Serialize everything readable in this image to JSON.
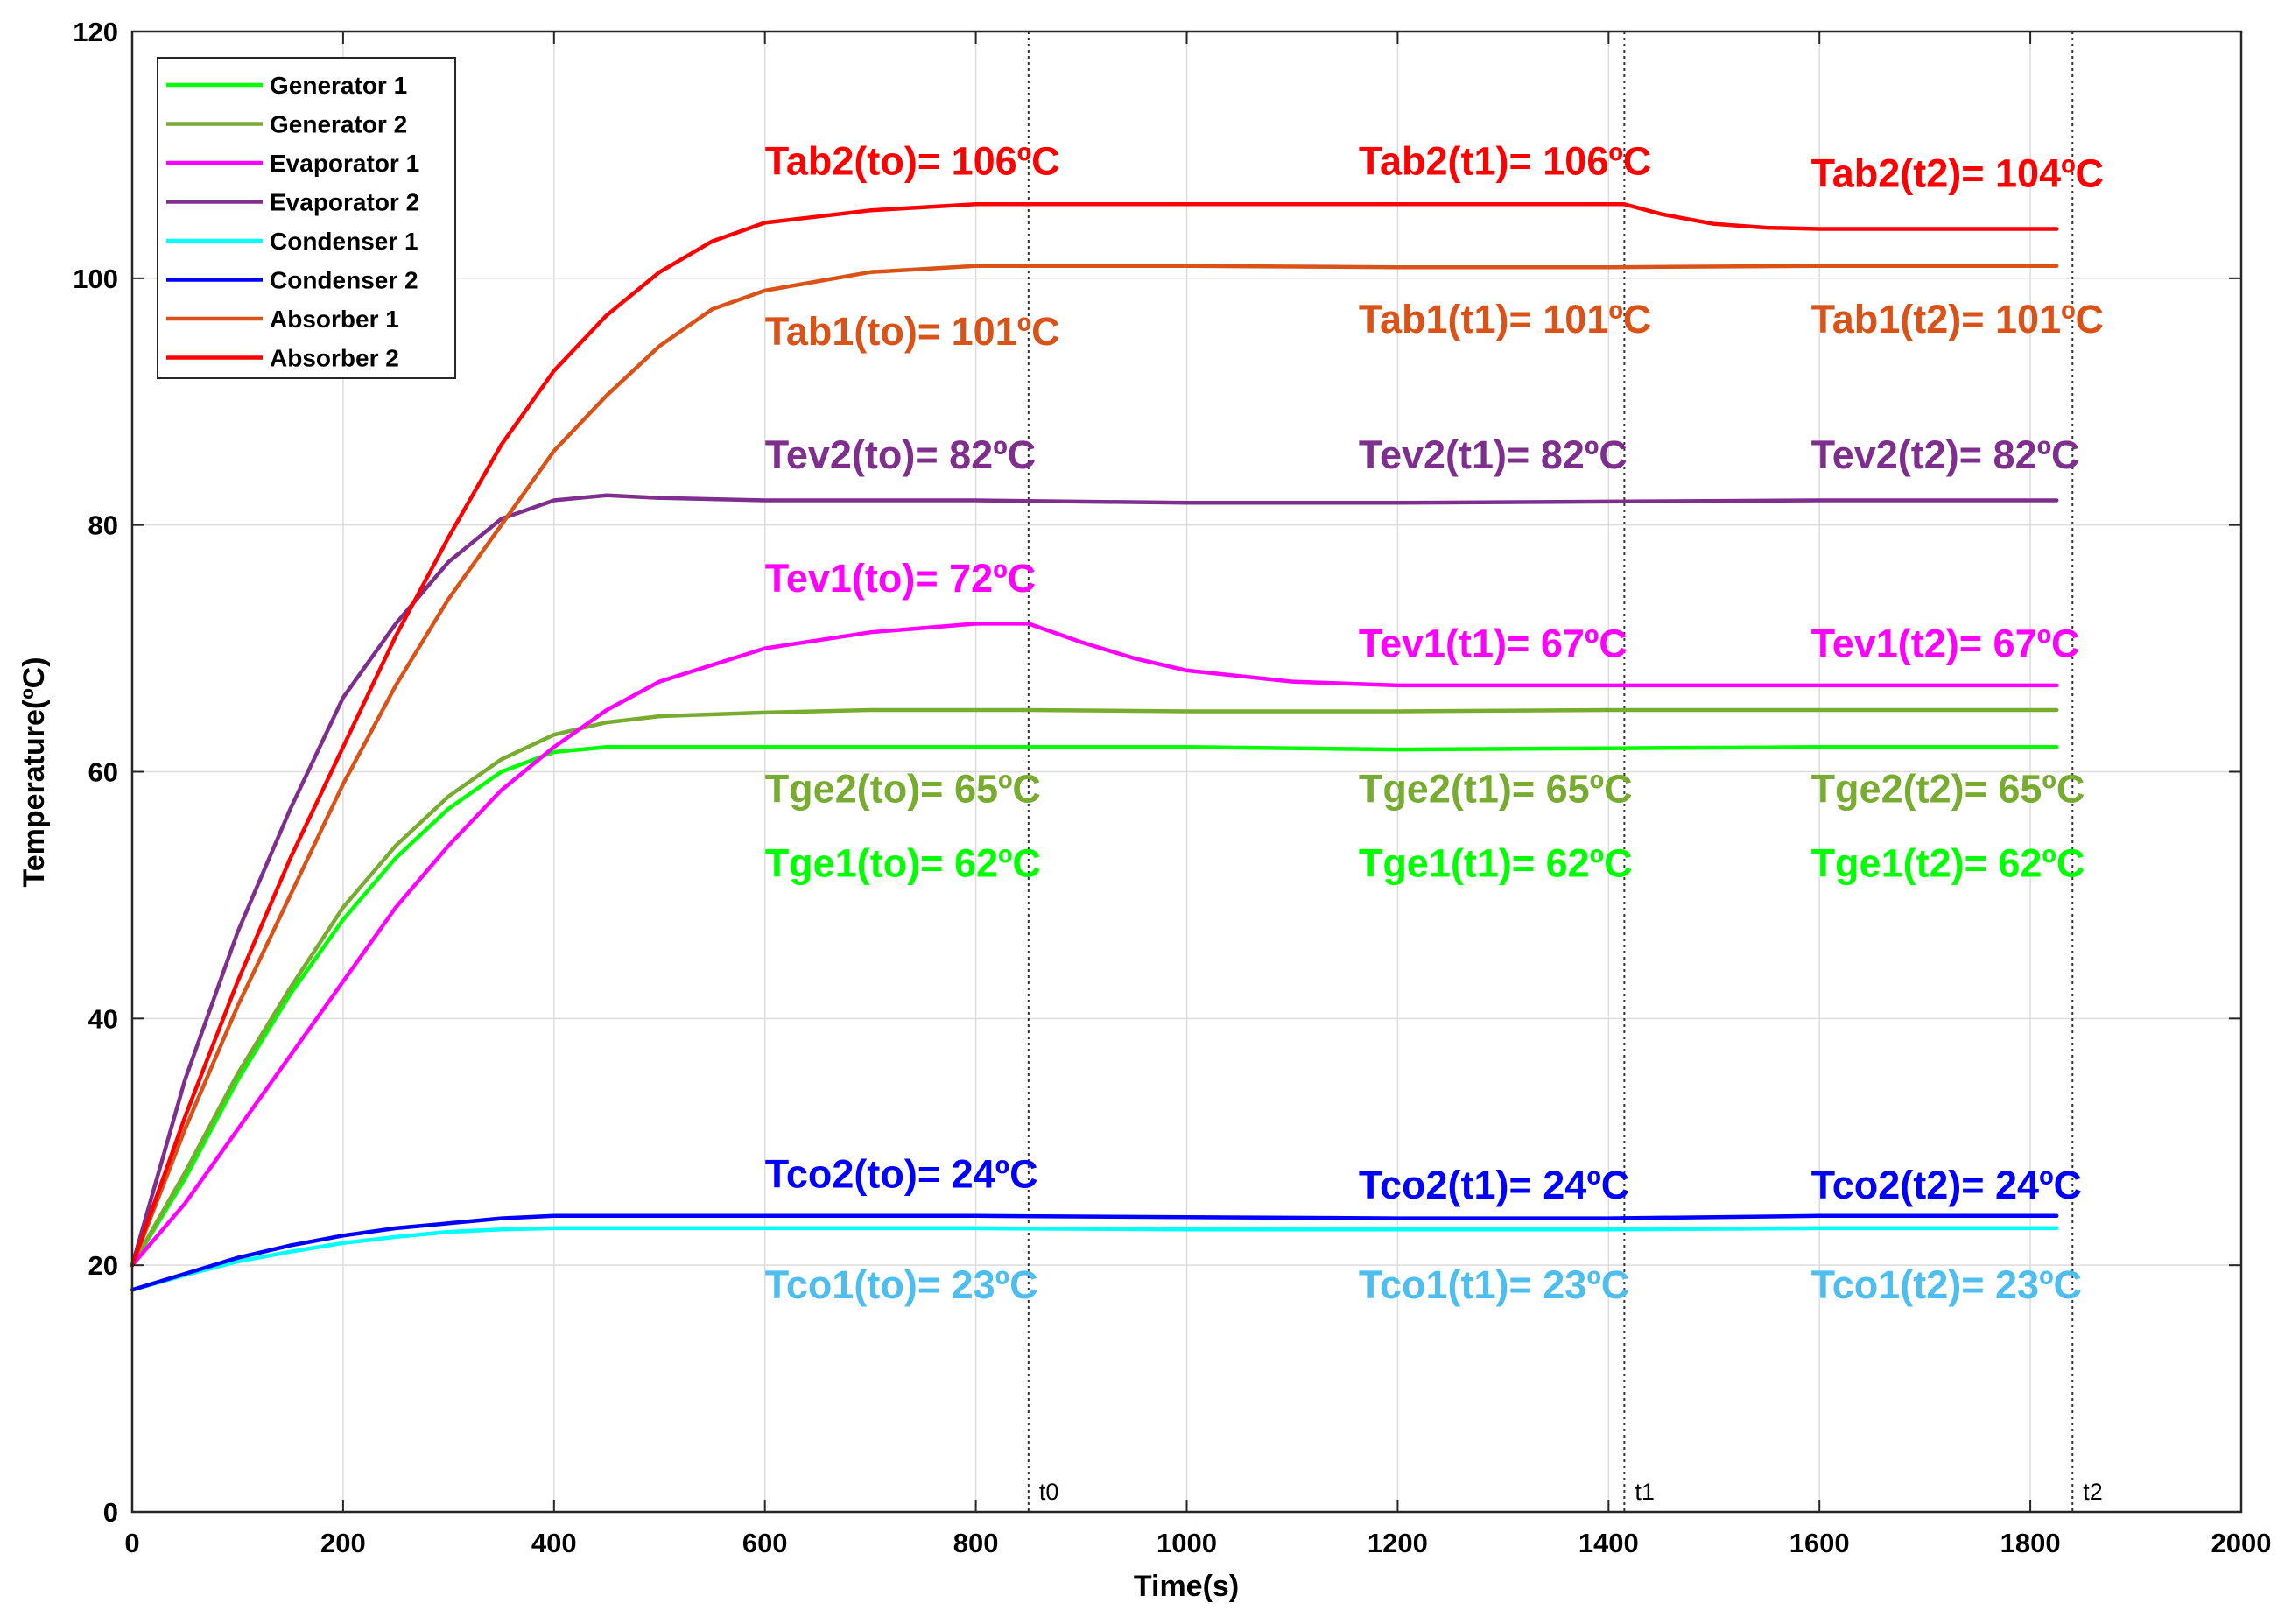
{
  "chart_data": {
    "type": "line",
    "title": "",
    "xlabel": "Time(s)",
    "ylabel": "Temperature(ºC)",
    "xlim": [
      0,
      2000
    ],
    "ylim": [
      0,
      120
    ],
    "xticks": [
      0,
      200,
      400,
      600,
      800,
      1000,
      1200,
      1400,
      1600,
      1800,
      2000
    ],
    "yticks": [
      0,
      20,
      40,
      60,
      80,
      100,
      120
    ],
    "grid": true,
    "legend_position": "top-left",
    "series": [
      {
        "name": "Generator 1",
        "color": "#00ff00",
        "points": [
          [
            0,
            20
          ],
          [
            50,
            27
          ],
          [
            100,
            35
          ],
          [
            150,
            42
          ],
          [
            200,
            48
          ],
          [
            250,
            53
          ],
          [
            300,
            57
          ],
          [
            350,
            60
          ],
          [
            400,
            61.6
          ],
          [
            450,
            62
          ],
          [
            500,
            62
          ],
          [
            700,
            62
          ],
          [
            850,
            62
          ],
          [
            1000,
            62
          ],
          [
            1200,
            61.8
          ],
          [
            1400,
            61.9
          ],
          [
            1600,
            62
          ],
          [
            1825,
            62
          ]
        ]
      },
      {
        "name": "Generator 2",
        "color": "#77ac30",
        "points": [
          [
            0,
            20
          ],
          [
            50,
            27.5
          ],
          [
            100,
            35.5
          ],
          [
            150,
            42.5
          ],
          [
            200,
            49
          ],
          [
            250,
            54
          ],
          [
            300,
            58
          ],
          [
            350,
            61
          ],
          [
            400,
            63
          ],
          [
            450,
            64
          ],
          [
            500,
            64.5
          ],
          [
            600,
            64.8
          ],
          [
            700,
            65
          ],
          [
            850,
            65
          ],
          [
            1000,
            64.9
          ],
          [
            1200,
            64.9
          ],
          [
            1400,
            65
          ],
          [
            1600,
            65
          ],
          [
            1825,
            65
          ]
        ]
      },
      {
        "name": "Evaporator 1",
        "color": "#ff00ff",
        "points": [
          [
            0,
            20
          ],
          [
            50,
            25
          ],
          [
            100,
            31
          ],
          [
            150,
            37
          ],
          [
            200,
            43
          ],
          [
            250,
            49
          ],
          [
            300,
            54
          ],
          [
            350,
            58.5
          ],
          [
            400,
            62
          ],
          [
            450,
            65
          ],
          [
            500,
            67.3
          ],
          [
            600,
            70
          ],
          [
            700,
            71.3
          ],
          [
            800,
            72
          ],
          [
            850,
            72
          ],
          [
            900,
            70.5
          ],
          [
            950,
            69.2
          ],
          [
            1000,
            68.2
          ],
          [
            1100,
            67.3
          ],
          [
            1200,
            67
          ],
          [
            1400,
            67
          ],
          [
            1600,
            67
          ],
          [
            1825,
            67
          ]
        ]
      },
      {
        "name": "Evaporator 2",
        "color": "#7e2f8e",
        "points": [
          [
            0,
            20
          ],
          [
            50,
            35
          ],
          [
            100,
            47
          ],
          [
            150,
            57
          ],
          [
            200,
            66
          ],
          [
            250,
            72
          ],
          [
            300,
            77
          ],
          [
            350,
            80.5
          ],
          [
            400,
            82
          ],
          [
            450,
            82.4
          ],
          [
            500,
            82.2
          ],
          [
            600,
            82
          ],
          [
            800,
            82
          ],
          [
            1000,
            81.8
          ],
          [
            1200,
            81.8
          ],
          [
            1400,
            81.9
          ],
          [
            1600,
            82
          ],
          [
            1825,
            82
          ]
        ]
      },
      {
        "name": "Condenser 1",
        "color": "#00ffff",
        "points": [
          [
            0,
            18
          ],
          [
            50,
            19.2
          ],
          [
            100,
            20.3
          ],
          [
            150,
            21.1
          ],
          [
            200,
            21.8
          ],
          [
            250,
            22.3
          ],
          [
            300,
            22.7
          ],
          [
            350,
            22.9
          ],
          [
            400,
            23
          ],
          [
            600,
            23
          ],
          [
            800,
            23
          ],
          [
            1000,
            22.9
          ],
          [
            1200,
            22.9
          ],
          [
            1400,
            22.9
          ],
          [
            1600,
            23
          ],
          [
            1825,
            23
          ]
        ]
      },
      {
        "name": "Condenser 2",
        "color": "#0000ff",
        "points": [
          [
            0,
            18
          ],
          [
            50,
            19.3
          ],
          [
            100,
            20.6
          ],
          [
            150,
            21.6
          ],
          [
            200,
            22.4
          ],
          [
            250,
            23
          ],
          [
            300,
            23.4
          ],
          [
            350,
            23.8
          ],
          [
            400,
            24
          ],
          [
            600,
            24
          ],
          [
            800,
            24
          ],
          [
            1000,
            23.9
          ],
          [
            1200,
            23.8
          ],
          [
            1400,
            23.8
          ],
          [
            1600,
            24
          ],
          [
            1825,
            24
          ]
        ]
      },
      {
        "name": "Absorber 1",
        "color": "#d95319",
        "points": [
          [
            0,
            20
          ],
          [
            50,
            31
          ],
          [
            100,
            41
          ],
          [
            150,
            50
          ],
          [
            200,
            59
          ],
          [
            250,
            67
          ],
          [
            300,
            74
          ],
          [
            350,
            80
          ],
          [
            400,
            86
          ],
          [
            450,
            90.5
          ],
          [
            500,
            94.5
          ],
          [
            550,
            97.5
          ],
          [
            600,
            99
          ],
          [
            700,
            100.5
          ],
          [
            800,
            101
          ],
          [
            850,
            101
          ],
          [
            1000,
            101
          ],
          [
            1200,
            100.9
          ],
          [
            1400,
            100.9
          ],
          [
            1600,
            101
          ],
          [
            1825,
            101
          ]
        ]
      },
      {
        "name": "Absorber 2",
        "color": "#ff0000",
        "points": [
          [
            0,
            20
          ],
          [
            50,
            32
          ],
          [
            100,
            43
          ],
          [
            150,
            53
          ],
          [
            200,
            62
          ],
          [
            250,
            71
          ],
          [
            300,
            79
          ],
          [
            350,
            86.5
          ],
          [
            400,
            92.5
          ],
          [
            450,
            97
          ],
          [
            500,
            100.5
          ],
          [
            550,
            103
          ],
          [
            600,
            104.5
          ],
          [
            700,
            105.5
          ],
          [
            800,
            106
          ],
          [
            1000,
            106
          ],
          [
            1200,
            106
          ],
          [
            1400,
            106
          ],
          [
            1415,
            106
          ],
          [
            1450,
            105.2
          ],
          [
            1500,
            104.4
          ],
          [
            1550,
            104.1
          ],
          [
            1600,
            104
          ],
          [
            1825,
            104
          ]
        ]
      }
    ],
    "time_markers": [
      {
        "label": "t0",
        "x": 850
      },
      {
        "label": "t1",
        "x": 1415
      },
      {
        "label": "t2",
        "x": 1840
      }
    ],
    "annotations": [
      {
        "text": "Tab2(to)= 106ºC",
        "color": "#ff0000",
        "x": 600,
        "y": 108.4
      },
      {
        "text": "Tab2(t1)= 106ºC",
        "color": "#ff0000",
        "x": 1163,
        "y": 108.4
      },
      {
        "text": "Tab2(t2)= 104ºC",
        "color": "#ff0000",
        "x": 1592,
        "y": 107.4
      },
      {
        "text": "Tab1(to)= 101ºC",
        "color": "#d95319",
        "x": 600,
        "y": 94.6
      },
      {
        "text": "Tab1(t1)= 101ºC",
        "color": "#d95319",
        "x": 1163,
        "y": 95.6
      },
      {
        "text": "Tab1(t2)= 101ºC",
        "color": "#d95319",
        "x": 1592,
        "y": 95.6
      },
      {
        "text": "Tev2(to)= 82ºC",
        "color": "#7e2f8e",
        "x": 600,
        "y": 84.6
      },
      {
        "text": "Tev2(t1)= 82ºC",
        "color": "#7e2f8e",
        "x": 1163,
        "y": 84.6
      },
      {
        "text": "Tev2(t2)= 82ºC",
        "color": "#7e2f8e",
        "x": 1592,
        "y": 84.6
      },
      {
        "text": "Tev1(to)= 72ºC",
        "color": "#ff00ff",
        "x": 600,
        "y": 74.6
      },
      {
        "text": "Tev1(t1)= 67ºC",
        "color": "#ff00ff",
        "x": 1163,
        "y": 69.3
      },
      {
        "text": "Tev1(t2)= 67ºC",
        "color": "#ff00ff",
        "x": 1592,
        "y": 69.3
      },
      {
        "text": "Tge2(to)= 65ºC",
        "color": "#77ac30",
        "x": 600,
        "y": 57.5
      },
      {
        "text": "Tge2(t1)= 65ºC",
        "color": "#77ac30",
        "x": 1163,
        "y": 57.5
      },
      {
        "text": "Tge2(t2)= 65ºC",
        "color": "#77ac30",
        "x": 1592,
        "y": 57.5
      },
      {
        "text": "Tge1(to)= 62ºC",
        "color": "#00ff00",
        "x": 600,
        "y": 51.5
      },
      {
        "text": "Tge1(t1)= 62ºC",
        "color": "#00ff00",
        "x": 1163,
        "y": 51.5
      },
      {
        "text": "Tge1(t2)= 62ºC",
        "color": "#00ff00",
        "x": 1592,
        "y": 51.5
      },
      {
        "text": "Tco2(to)= 24ºC",
        "color": "#0000ff",
        "x": 600,
        "y": 26.3
      },
      {
        "text": "Tco2(t1)= 24ºC",
        "color": "#0000ff",
        "x": 1163,
        "y": 25.4
      },
      {
        "text": "Tco2(t2)= 24ºC",
        "color": "#0000ff",
        "x": 1592,
        "y": 25.4
      },
      {
        "text": "Tco1(to)= 23ºC",
        "color": "#4dbeee",
        "x": 600,
        "y": 17.3
      },
      {
        "text": "Tco1(t1)= 23ºC",
        "color": "#4dbeee",
        "x": 1163,
        "y": 17.3
      },
      {
        "text": "Tco1(t2)= 23ºC",
        "color": "#4dbeee",
        "x": 1592,
        "y": 17.3
      }
    ]
  }
}
